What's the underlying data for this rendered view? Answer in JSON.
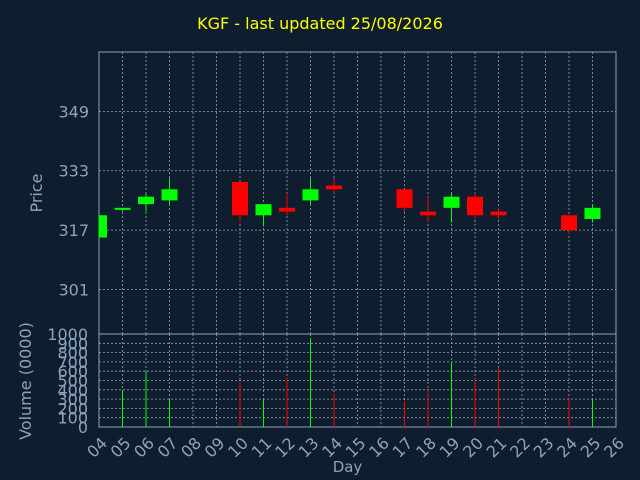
{
  "chart_data": [
    {
      "type": "candlestick",
      "title": "KGF - last updated 25/08/2026",
      "ylabel": "Price",
      "ylim": [
        289,
        365
      ],
      "yticks": [
        301,
        317,
        333,
        349
      ],
      "grid": true,
      "up_color": "#00ff00",
      "down_color": "#ff0000",
      "candles": [
        {
          "x": "04",
          "open": 315,
          "high": 321,
          "low": 315,
          "close": 321
        },
        {
          "x": "05",
          "open": 323,
          "high": 323,
          "low": 322,
          "close": 323
        },
        {
          "x": "06",
          "open": 324,
          "high": 327,
          "low": 322,
          "close": 326
        },
        {
          "x": "07",
          "open": 325,
          "high": 331,
          "low": 324,
          "close": 328
        },
        {
          "x": "10",
          "open": 330,
          "high": 330,
          "low": 319,
          "close": 321
        },
        {
          "x": "11",
          "open": 321,
          "high": 324,
          "low": 318,
          "close": 324
        },
        {
          "x": "12",
          "open": 323,
          "high": 327,
          "low": 321,
          "close": 322
        },
        {
          "x": "13",
          "open": 325,
          "high": 331,
          "low": 324,
          "close": 328
        },
        {
          "x": "14",
          "open": 329,
          "high": 331,
          "low": 327,
          "close": 328
        },
        {
          "x": "17",
          "open": 328,
          "high": 328,
          "low": 322,
          "close": 323
        },
        {
          "x": "18",
          "open": 322,
          "high": 326,
          "low": 319,
          "close": 321
        },
        {
          "x": "19",
          "open": 323,
          "high": 327,
          "low": 319,
          "close": 326
        },
        {
          "x": "20",
          "open": 326,
          "high": 327,
          "low": 320,
          "close": 321
        },
        {
          "x": "21",
          "open": 322,
          "high": 323,
          "low": 320,
          "close": 321
        },
        {
          "x": "24",
          "open": 321,
          "high": 321,
          "low": 316,
          "close": 317
        },
        {
          "x": "25",
          "open": 320,
          "high": 324,
          "low": 319,
          "close": 323
        }
      ]
    },
    {
      "type": "bar",
      "ylabel": "Volume (0000)",
      "xlabel": "Day",
      "ylim": [
        0,
        1000
      ],
      "yticks": [
        0,
        100,
        200,
        300,
        400,
        500,
        600,
        700,
        800,
        900,
        1000
      ],
      "categories": [
        "04",
        "05",
        "06",
        "07",
        "08",
        "09",
        "10",
        "11",
        "12",
        "13",
        "14",
        "15",
        "16",
        "17",
        "18",
        "19",
        "20",
        "21",
        "22",
        "23",
        "24",
        "25",
        "26"
      ],
      "values": [
        {
          "x": "05",
          "value": 390,
          "dir": "up"
        },
        {
          "x": "06",
          "value": 600,
          "dir": "up"
        },
        {
          "x": "07",
          "value": 300,
          "dir": "up"
        },
        {
          "x": "10",
          "value": 500,
          "dir": "down"
        },
        {
          "x": "11",
          "value": 300,
          "dir": "up"
        },
        {
          "x": "12",
          "value": 530,
          "dir": "down"
        },
        {
          "x": "13",
          "value": 950,
          "dir": "up"
        },
        {
          "x": "14",
          "value": 360,
          "dir": "down"
        },
        {
          "x": "17",
          "value": 280,
          "dir": "down"
        },
        {
          "x": "18",
          "value": 400,
          "dir": "down"
        },
        {
          "x": "19",
          "value": 680,
          "dir": "up"
        },
        {
          "x": "20",
          "value": 520,
          "dir": "down"
        },
        {
          "x": "21",
          "value": 640,
          "dir": "down"
        },
        {
          "x": "24",
          "value": 320,
          "dir": "down"
        },
        {
          "x": "25",
          "value": 300,
          "dir": "up"
        }
      ]
    }
  ],
  "colors": {
    "background": "#0f1e2e",
    "axis": "#8da3bd",
    "grid": "#8da3bd",
    "tick_text": "#8da3bd",
    "title": "#ffff00"
  }
}
